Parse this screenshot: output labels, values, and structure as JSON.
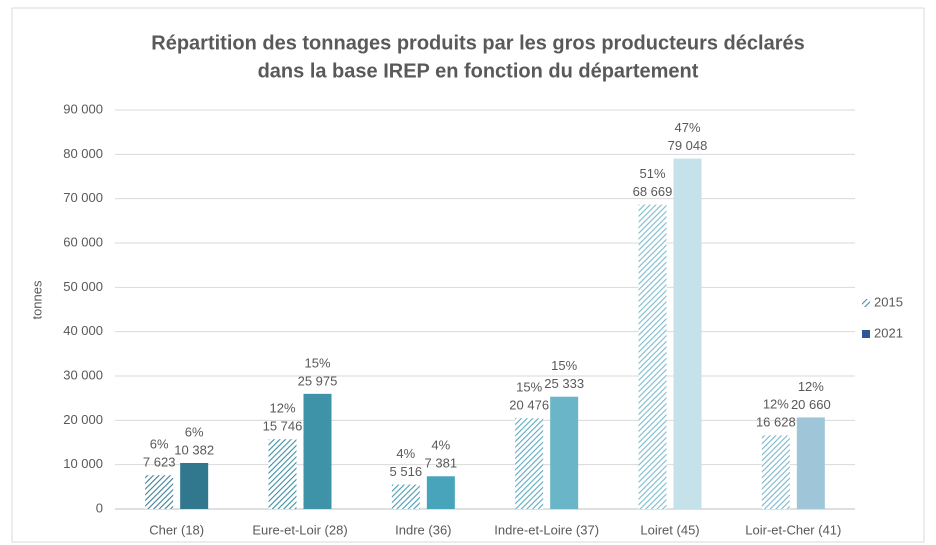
{
  "chart_data": {
    "type": "bar",
    "title": [
      "Répartition des tonnages produits par les gros producteurs déclarés",
      "dans la base IREP en fonction du département"
    ],
    "y_label": "tonnes",
    "categories": [
      "Cher (18)",
      "Eure-et-Loir (28)",
      "Indre (36)",
      "Indre-et-Loire (37)",
      "Loiret (45)",
      "Loir-et-Cher (41)"
    ],
    "series": [
      {
        "name": "2015",
        "color": "#4a8fa3",
        "pattern": "hatch",
        "colors": [
          "#3f7f93",
          "#3f8ea3",
          "#4a9db3",
          "#5eaac0",
          "#7dbbcc",
          "#7fb6cc"
        ],
        "values": [
          7623,
          15746,
          5516,
          20476,
          68669,
          16628
        ],
        "value_labels": [
          "7 623",
          "15 746",
          "5 516",
          "20 476",
          "68 669",
          "16 628"
        ],
        "share_labels": [
          "6%",
          "12%",
          "4%",
          "15%",
          "51%",
          "12%"
        ]
      },
      {
        "name": "2021",
        "color": "#2f5597",
        "pattern": "solid",
        "colors": [
          "#31788f",
          "#3e93a8",
          "#47a4bb",
          "#6bb5c9",
          "#c5e2ea",
          "#9ec6d8"
        ],
        "values": [
          10382,
          25975,
          7381,
          25333,
          79048,
          20660
        ],
        "value_labels": [
          "10 382",
          "25 975",
          "7 381",
          "25 333",
          "79 048",
          "20 660"
        ],
        "share_labels": [
          "6%",
          "15%",
          "4%",
          "15%",
          "47%",
          "12%"
        ]
      }
    ],
    "ylim": [
      0,
      90000
    ],
    "yticks": [
      0,
      {
        "value": 10000,
        "label": "10 000"
      },
      {
        "value": 20000,
        "label": "20 000"
      },
      {
        "value": 30000,
        "label": "30 000"
      },
      {
        "value": 40000,
        "label": "40 000"
      },
      {
        "value": 50000,
        "label": "50 000"
      },
      {
        "value": 60000,
        "label": "60 000"
      },
      {
        "value": 70000,
        "label": "70 000"
      },
      {
        "value": 80000,
        "label": "80 000"
      },
      {
        "value": 90000,
        "label": "90 000"
      }
    ],
    "grid": true,
    "legend": "right"
  }
}
